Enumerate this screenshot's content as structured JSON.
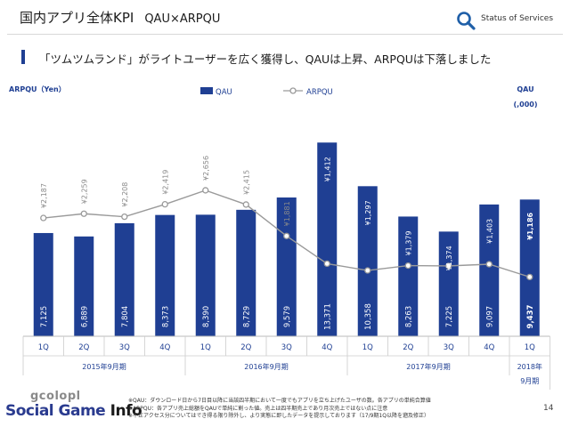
{
  "header": {
    "title": "国内アプリ全体KPI",
    "subtitle": "QAU×ARPQU",
    "status_label": "Status of Services"
  },
  "headline": "「ツムツムランド」がライトユーザーを広く獲得し、QAUは上昇、ARPQUは下落しました",
  "chart_data": {
    "type": "bar",
    "categories": [
      "1Q",
      "2Q",
      "3Q",
      "4Q",
      "1Q",
      "2Q",
      "3Q",
      "4Q",
      "1Q",
      "2Q",
      "3Q",
      "4Q",
      "1Q"
    ],
    "groups": [
      {
        "label": "2015年9月期",
        "span": 4
      },
      {
        "label": "2016年9月期",
        "span": 4
      },
      {
        "label": "2017年9月期",
        "span": 4
      },
      {
        "label": "2018年\n9月期",
        "span": 1
      }
    ],
    "series": [
      {
        "name": "QAU",
        "type": "bar",
        "axis": "right",
        "values": [
          7125,
          6889,
          7804,
          8373,
          8390,
          8729,
          9579,
          13371,
          10358,
          8263,
          7225,
          9097,
          9437
        ],
        "labels": [
          "7,125",
          "6,889",
          "7,804",
          "8,373",
          "8,390",
          "8,729",
          "9,579",
          "13,371",
          "10,358",
          "8,263",
          "7,225",
          "9,097",
          "9,437"
        ],
        "color": "#1f3f93"
      },
      {
        "name": "ARPQU",
        "type": "line",
        "axis": "left",
        "values": [
          2187,
          2259,
          2208,
          2419,
          2656,
          2415,
          1881,
          1412,
          1297,
          1379,
          1374,
          1403,
          1186
        ],
        "labels": [
          "¥2,187",
          "¥2,259",
          "¥2,208",
          "¥2,419",
          "¥2,656",
          "¥2,415",
          "¥1,881",
          "¥1,412",
          "¥1,297",
          "¥1,379",
          "¥1,374",
          "¥1,403",
          "¥1,186"
        ],
        "color": "#9a9a9a"
      }
    ],
    "left_axis_label": "ARPQU（Yen）",
    "right_axis_label": [
      "QAU",
      "(,000)"
    ],
    "legend_position": "top-center",
    "bar_ylim": [
      0,
      14000
    ],
    "line_ylim": [
      0,
      3500
    ],
    "highlight_last": true
  },
  "footnotes": [
    "※QAU：ダウンロード日から7日目以降に当該四半期において一度でもアプリを立ち上げたユーザの数。各アプリの単純合算値",
    "※ARPQU：各アプリ売上総額をQAUで単純に割った値。売上は四半期売上であり月次売上ではない点に注意",
    "※不正アクセス分についてはでき得る限り除外し、より実態に即したデータを提示しております（17/9期1Q以降を遡及修正）"
  ],
  "page_number": "14",
  "logo": {
    "line1": "gcolopl",
    "line2a": "Social Game ",
    "line2b": "Info"
  }
}
